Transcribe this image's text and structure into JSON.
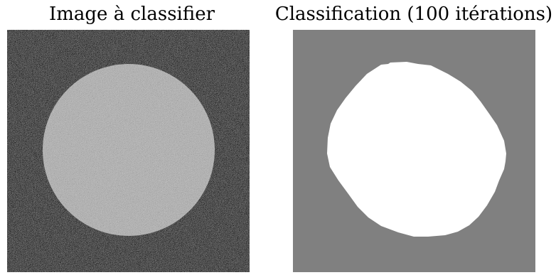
{
  "figure": {
    "left_panel": {
      "title": "Image à classifier",
      "background_color": "#2e2e2e",
      "disk_color": "#b0b0b0",
      "noise": "gaussian speckle"
    },
    "right_panel": {
      "title": "Classification (100 itérations)",
      "background_color": "#808080",
      "class_color": "#ffffff"
    }
  }
}
